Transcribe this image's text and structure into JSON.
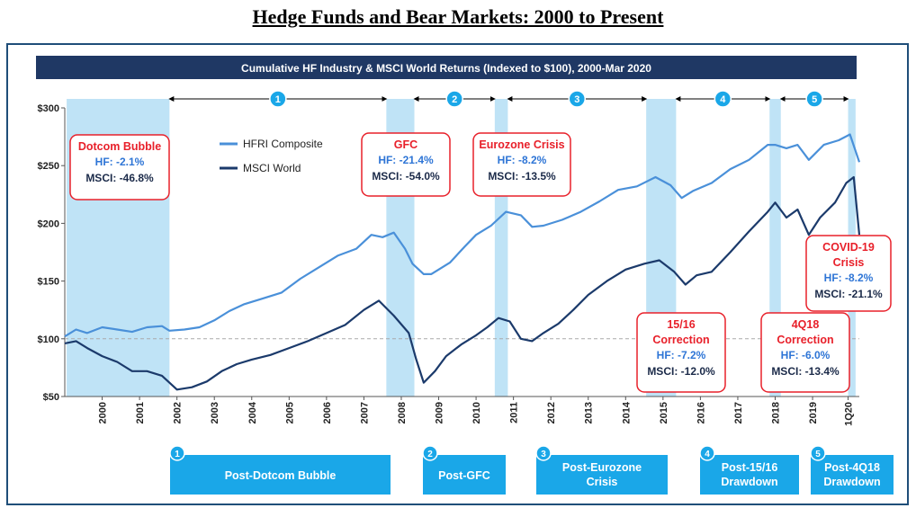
{
  "page_title": "Hedge Funds and Bear Markets: 2000 to Present",
  "chart_data": {
    "type": "line",
    "title": "Cumulative HF Industry & MSCI World Returns (Indexed to $100), 2000-Mar 2020",
    "xlabel": "",
    "ylabel": "",
    "xlim": [
      1999.0,
      2020.25
    ],
    "ylim": [
      50,
      300
    ],
    "y_ticks": [
      {
        "value": 50,
        "label": "$50"
      },
      {
        "value": 100,
        "label": "$100"
      },
      {
        "value": 150,
        "label": "$150"
      },
      {
        "value": 200,
        "label": "$200"
      },
      {
        "value": 250,
        "label": "$250"
      },
      {
        "value": 300,
        "label": "$300"
      }
    ],
    "x_ticks": [
      {
        "value": 2000,
        "label": "2000"
      },
      {
        "value": 2001,
        "label": "2001"
      },
      {
        "value": 2002,
        "label": "2002"
      },
      {
        "value": 2003,
        "label": "2003"
      },
      {
        "value": 2004,
        "label": "2004"
      },
      {
        "value": 2005,
        "label": "2005"
      },
      {
        "value": 2006,
        "label": "2006"
      },
      {
        "value": 2007,
        "label": "2007"
      },
      {
        "value": 2008,
        "label": "2008"
      },
      {
        "value": 2009,
        "label": "2009"
      },
      {
        "value": 2010,
        "label": "2010"
      },
      {
        "value": 2011,
        "label": "2011"
      },
      {
        "value": 2012,
        "label": "2012"
      },
      {
        "value": 2013,
        "label": "2013"
      },
      {
        "value": 2014,
        "label": "2014"
      },
      {
        "value": 2015,
        "label": "2015"
      },
      {
        "value": 2016,
        "label": "2016"
      },
      {
        "value": 2017,
        "label": "2017"
      },
      {
        "value": 2018,
        "label": "2018"
      },
      {
        "value": 2019,
        "label": "2019"
      },
      {
        "value": 2019.95,
        "label": "1Q20"
      }
    ],
    "reference_line": 100,
    "series": [
      {
        "name": "HFRI Composite",
        "color": "#4a90d9",
        "points": [
          [
            1999.0,
            102
          ],
          [
            1999.3,
            108
          ],
          [
            1999.6,
            105
          ],
          [
            2000.0,
            110
          ],
          [
            2000.4,
            108
          ],
          [
            2000.8,
            106
          ],
          [
            2001.2,
            110
          ],
          [
            2001.6,
            111
          ],
          [
            2001.8,
            107
          ],
          [
            2002.2,
            108
          ],
          [
            2002.6,
            110
          ],
          [
            2003.0,
            116
          ],
          [
            2003.4,
            124
          ],
          [
            2003.8,
            130
          ],
          [
            2004.3,
            135
          ],
          [
            2004.8,
            140
          ],
          [
            2005.3,
            152
          ],
          [
            2005.8,
            162
          ],
          [
            2006.3,
            172
          ],
          [
            2006.8,
            178
          ],
          [
            2007.2,
            190
          ],
          [
            2007.5,
            188
          ],
          [
            2007.8,
            192
          ],
          [
            2008.1,
            178
          ],
          [
            2008.3,
            165
          ],
          [
            2008.6,
            156
          ],
          [
            2008.8,
            156
          ],
          [
            2009.0,
            160
          ],
          [
            2009.3,
            166
          ],
          [
            2009.7,
            180
          ],
          [
            2010.0,
            190
          ],
          [
            2010.4,
            198
          ],
          [
            2010.8,
            210
          ],
          [
            2011.2,
            207
          ],
          [
            2011.5,
            197
          ],
          [
            2011.8,
            198
          ],
          [
            2012.3,
            203
          ],
          [
            2012.8,
            210
          ],
          [
            2013.3,
            219
          ],
          [
            2013.8,
            229
          ],
          [
            2014.3,
            232
          ],
          [
            2014.8,
            240
          ],
          [
            2015.2,
            233
          ],
          [
            2015.5,
            222
          ],
          [
            2015.8,
            228
          ],
          [
            2016.3,
            235
          ],
          [
            2016.8,
            247
          ],
          [
            2017.3,
            255
          ],
          [
            2017.8,
            268
          ],
          [
            2018.0,
            268
          ],
          [
            2018.3,
            265
          ],
          [
            2018.6,
            268
          ],
          [
            2018.9,
            255
          ],
          [
            2019.3,
            268
          ],
          [
            2019.7,
            272
          ],
          [
            2020.0,
            277
          ],
          [
            2020.25,
            253
          ]
        ]
      },
      {
        "name": "MSCI World",
        "color": "#1b3a6b",
        "points": [
          [
            1999.0,
            96
          ],
          [
            1999.3,
            98
          ],
          [
            1999.6,
            92
          ],
          [
            2000.0,
            85
          ],
          [
            2000.4,
            80
          ],
          [
            2000.8,
            72
          ],
          [
            2001.2,
            72
          ],
          [
            2001.6,
            68
          ],
          [
            2002.0,
            56
          ],
          [
            2002.4,
            58
          ],
          [
            2002.8,
            63
          ],
          [
            2003.2,
            72
          ],
          [
            2003.6,
            78
          ],
          [
            2004.0,
            82
          ],
          [
            2004.5,
            86
          ],
          [
            2005.0,
            92
          ],
          [
            2005.5,
            98
          ],
          [
            2006.0,
            105
          ],
          [
            2006.5,
            112
          ],
          [
            2007.0,
            125
          ],
          [
            2007.4,
            133
          ],
          [
            2007.8,
            120
          ],
          [
            2008.2,
            105
          ],
          [
            2008.4,
            82
          ],
          [
            2008.6,
            62
          ],
          [
            2008.9,
            72
          ],
          [
            2009.2,
            85
          ],
          [
            2009.6,
            95
          ],
          [
            2010.0,
            103
          ],
          [
            2010.3,
            110
          ],
          [
            2010.6,
            118
          ],
          [
            2010.9,
            115
          ],
          [
            2011.2,
            100
          ],
          [
            2011.5,
            98
          ],
          [
            2011.8,
            105
          ],
          [
            2012.2,
            113
          ],
          [
            2012.6,
            125
          ],
          [
            2013.0,
            138
          ],
          [
            2013.5,
            150
          ],
          [
            2014.0,
            160
          ],
          [
            2014.5,
            165
          ],
          [
            2014.9,
            168
          ],
          [
            2015.3,
            158
          ],
          [
            2015.6,
            147
          ],
          [
            2015.9,
            155
          ],
          [
            2016.3,
            158
          ],
          [
            2016.8,
            175
          ],
          [
            2017.3,
            193
          ],
          [
            2017.8,
            210
          ],
          [
            2018.0,
            218
          ],
          [
            2018.3,
            205
          ],
          [
            2018.6,
            212
          ],
          [
            2018.9,
            190
          ],
          [
            2019.2,
            205
          ],
          [
            2019.6,
            218
          ],
          [
            2019.9,
            235
          ],
          [
            2020.1,
            240
          ],
          [
            2020.25,
            190
          ]
        ]
      }
    ],
    "legend": {
      "position": "top-left",
      "entries": [
        "HFRI Composite",
        "MSCI World"
      ]
    },
    "shaded_periods": [
      {
        "start": 1999.05,
        "end": 2001.8
      },
      {
        "start": 2007.6,
        "end": 2008.35
      },
      {
        "start": 2010.5,
        "end": 2010.85
      },
      {
        "start": 2014.55,
        "end": 2015.35
      },
      {
        "start": 2017.85,
        "end": 2018.15
      },
      {
        "start": 2019.95,
        "end": 2020.15
      }
    ],
    "periods": [
      {
        "number": "1",
        "start": 2001.8,
        "end": 2007.6,
        "label": "Post-Dotcom Bubble"
      },
      {
        "number": "2",
        "start": 2008.35,
        "end": 2010.5,
        "label": "Post-GFC"
      },
      {
        "number": "3",
        "start": 2010.85,
        "end": 2014.55,
        "label": "Post-Eurozone Crisis"
      },
      {
        "number": "4",
        "start": 2015.35,
        "end": 2017.85,
        "label": "Post-15/16 Drawdown"
      },
      {
        "number": "5",
        "start": 2018.15,
        "end": 2019.95,
        "label": "Post-4Q18 Drawdown"
      }
    ],
    "callouts": [
      {
        "title": [
          "Dotcom Bubble"
        ],
        "hf": "HF: -2.1%",
        "msci": "MSCI: -46.8%"
      },
      {
        "title": [
          "GFC"
        ],
        "hf": "HF: -21.4%",
        "msci": "MSCI: -54.0%"
      },
      {
        "title": [
          "Eurozone Crisis"
        ],
        "hf": "HF: -8.2%",
        "msci": "MSCI: -13.5%"
      },
      {
        "title": [
          "15/16",
          "Correction"
        ],
        "hf": "HF: -7.2%",
        "msci": "MSCI: -12.0%"
      },
      {
        "title": [
          "4Q18",
          "Correction"
        ],
        "hf": "HF: -6.0%",
        "msci": "MSCI: -13.4%"
      },
      {
        "title": [
          "COVID-19",
          "Crisis"
        ],
        "hf": "HF: -8.2%",
        "msci": "MSCI: -21.1%"
      }
    ],
    "bottom_boxes": [
      {
        "number": "1",
        "lines": [
          "Post-Dotcom Bubble"
        ]
      },
      {
        "number": "2",
        "lines": [
          "Post-GFC"
        ]
      },
      {
        "number": "3",
        "lines": [
          "Post-Eurozone",
          "Crisis"
        ]
      },
      {
        "number": "4",
        "lines": [
          "Post-15/16",
          "Drawdown"
        ]
      },
      {
        "number": "5",
        "lines": [
          "Post-4Q18",
          "Drawdown"
        ]
      }
    ],
    "colors": {
      "header_bg": "#1f3864",
      "shade": "#bfe3f6",
      "callout_red": "#e8202a",
      "hf_blue": "#2e75d6",
      "box_blue": "#1aa7e8"
    }
  }
}
